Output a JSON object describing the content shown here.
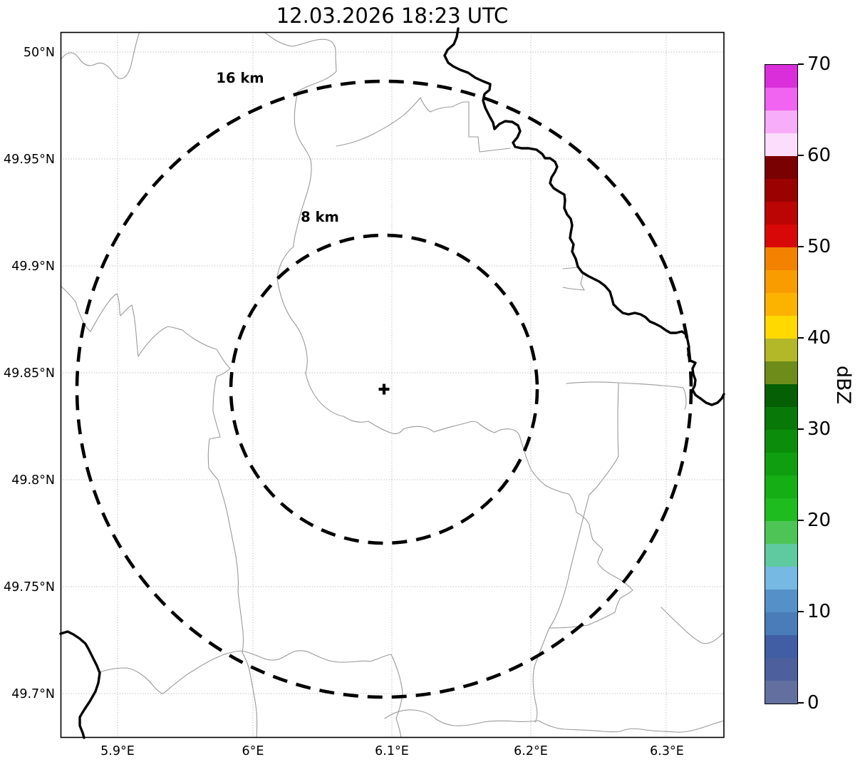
{
  "title": "12.03.2026 18:23 UTC",
  "axes": {
    "x_ticks": [
      "5.9°E",
      "6°E",
      "6.1°E",
      "6.2°E",
      "6.3°E"
    ],
    "y_ticks": [
      "50°N",
      "49.95°N",
      "49.9°N",
      "49.85°N",
      "49.8°N",
      "49.75°N",
      "49.7°N"
    ]
  },
  "rings": {
    "outer": "16 km",
    "inner": "8 km"
  },
  "marker": {
    "symbol": "+",
    "meaning": "radar site"
  },
  "colorbar": {
    "label": "dBZ",
    "ticks": [
      "0",
      "10",
      "20",
      "30",
      "40",
      "50",
      "60",
      "70"
    ],
    "min": 0,
    "max": 70,
    "segment_step_dbz": 2.5,
    "segment_colors_bottom_to_top": [
      "#63709f",
      "#4d5f9c",
      "#415ea4",
      "#497cb8",
      "#5591c8",
      "#76b9e2",
      "#5fc9a0",
      "#4ec457",
      "#1fbc1f",
      "#15ae15",
      "#0f9e0f",
      "#0b8d0b",
      "#087908",
      "#055f05",
      "#6e8c1a",
      "#b3b828",
      "#ffd900",
      "#fbb300",
      "#f99c00",
      "#f28200",
      "#d90808",
      "#bb0404",
      "#9a0202",
      "#7a0101",
      "#fcdefc",
      "#f7adf7",
      "#f163f1",
      "#da2eda"
    ]
  },
  "chart_data": {
    "type": "heatmap",
    "subtype": "weather radar reflectivity map (PPI) with range rings; no echoes plotted (clear scan)",
    "title": "12.03.2026 18:23 UTC",
    "xlabel": "",
    "ylabel": "",
    "x_ticks_deg_east": [
      5.9,
      6.0,
      6.1,
      6.2,
      6.3
    ],
    "y_ticks_deg_north": [
      50.0,
      49.95,
      49.9,
      49.85,
      49.8,
      49.75,
      49.7
    ],
    "x_range_deg_east": [
      5.859,
      6.341
    ],
    "y_range_deg_north": [
      49.68,
      50.009
    ],
    "grid": true,
    "radar_site": {
      "lon_deg_east": 6.094,
      "lat_deg_north": 49.842,
      "marker": "+"
    },
    "range_rings_km": [
      8,
      16
    ],
    "range_ring_labels": [
      "8 km",
      "16 km"
    ],
    "colorbar": {
      "label": "dBZ",
      "min": 0,
      "max": 70,
      "tick_step": 10,
      "segment_step": 2.5,
      "position": "right"
    },
    "reflectivity_values": [],
    "map_features": [
      "thin gray administrative boundary lines",
      "thick black river / national border line in NE quadrant and SW corner",
      "dashed black range rings labeled 8 km and 16 km",
      "+ marker at radar location"
    ]
  }
}
